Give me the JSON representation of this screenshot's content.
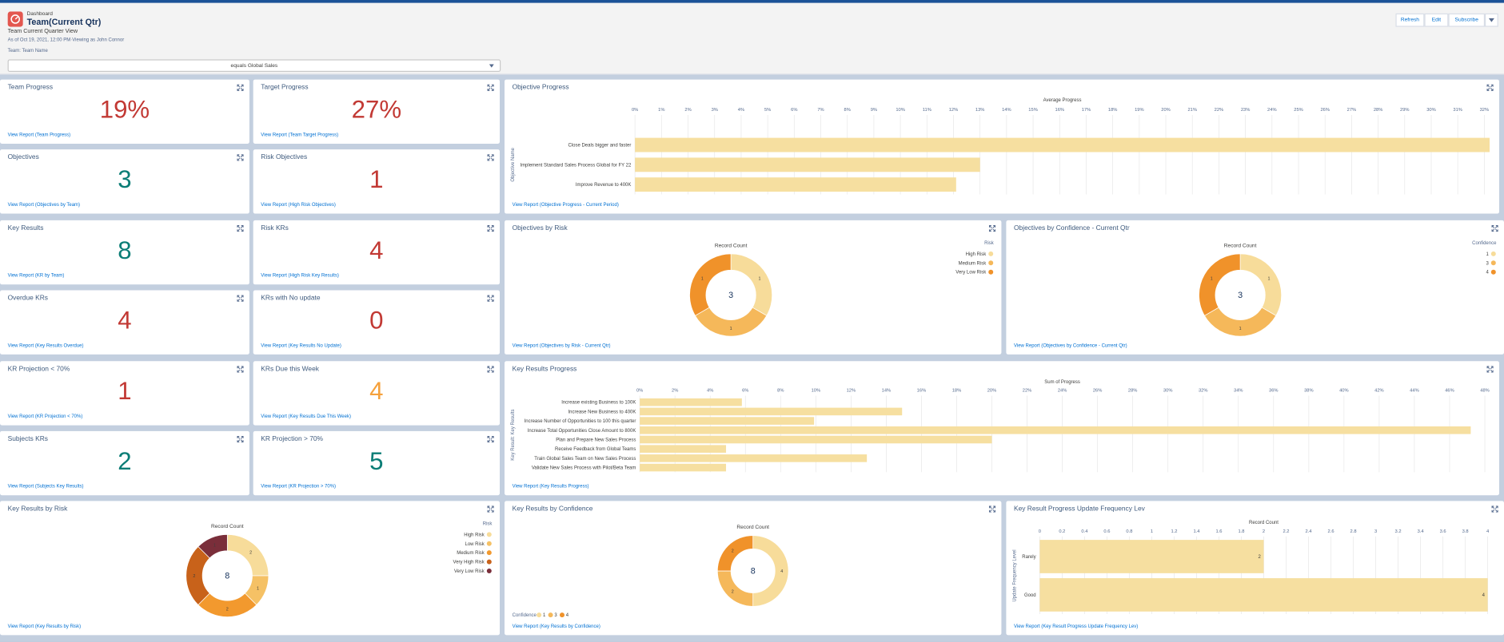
{
  "header": {
    "breadcrumb": "Dashboard",
    "title": "Team(Current Qtr)",
    "subtitle": "Team Current Quarter View",
    "meta": "As of Oct 19, 2021, 12:00 PM·Viewing as John Connor",
    "buttons": [
      "Refresh",
      "Edit",
      "Subscribe"
    ]
  },
  "filter": {
    "label": "Team: Team Name",
    "value": "equals Global Sales"
  },
  "metrics": [
    {
      "title": "Team Progress",
      "value": "19%",
      "color": "#c23934",
      "link": "View Report (Team Progress)"
    },
    {
      "title": "Target Progress",
      "value": "27%",
      "color": "#c23934",
      "link": "View Report (Team Target Progress)"
    },
    {
      "title": "Objectives",
      "value": "3",
      "color": "#0b7d76",
      "link": "View Report (Objectives by Team)"
    },
    {
      "title": "Risk Objectives",
      "value": "1",
      "color": "#c23934",
      "link": "View Report (High Risk Objectives)"
    },
    {
      "title": "Key Results",
      "value": "8",
      "color": "#0b7d76",
      "link": "View Report (KR by Team)"
    },
    {
      "title": "Risk KRs",
      "value": "4",
      "color": "#c23934",
      "link": "View Report (High Risk Key Results)"
    },
    {
      "title": "Overdue KRs",
      "value": "4",
      "color": "#c23934",
      "link": "View Report (Key Results Overdue)"
    },
    {
      "title": "KRs with No update",
      "value": "0",
      "color": "#c23934",
      "link": "View Report (Key Results No Update)"
    },
    {
      "title": "KR Projection < 70%",
      "value": "1",
      "color": "#c23934",
      "link": "View Report (KR Projection < 70%)"
    },
    {
      "title": "KRs Due this Week",
      "value": "4",
      "color": "#f5a13c",
      "link": "View Report (Key Results Due This Week)"
    },
    {
      "title": "Subjects KRs",
      "value": "2",
      "color": "#0b7d76",
      "link": "View Report (Subjects Key Results)"
    },
    {
      "title": "KR Projection > 70%",
      "value": "5",
      "color": "#0b7d76",
      "link": "View Report (KR Projection > 70%)"
    }
  ],
  "charts": [
    {
      "type": "hbar",
      "title": "Objective Progress",
      "x_label": "Average Progress",
      "y_label": "Objective Name",
      "categories": [
        "Close Deals bigger and faster",
        "Implement Standard Sales Process Global for FY 22",
        "Improve Revenue to 400K"
      ],
      "values": [
        32.2,
        13.0,
        12.1
      ],
      "color": "#f6dfa0",
      "xlim": [
        0,
        32.2
      ],
      "grid": true,
      "xticks": [
        {
          "value": 0,
          "label": "0%"
        },
        {
          "value": 1,
          "label": "1%"
        },
        {
          "value": 2,
          "label": "2%"
        },
        {
          "value": 3,
          "label": "3%"
        },
        {
          "value": 4,
          "label": "4%"
        },
        {
          "value": 5,
          "label": "5%"
        },
        {
          "value": 6,
          "label": "6%"
        },
        {
          "value": 7,
          "label": "7%"
        },
        {
          "value": 8,
          "label": "8%"
        },
        {
          "value": 9,
          "label": "9%"
        },
        {
          "value": 10,
          "label": "10%"
        },
        {
          "value": 11,
          "label": "11%"
        },
        {
          "value": 12,
          "label": "12%"
        },
        {
          "value": 13,
          "label": "13%"
        },
        {
          "value": 14,
          "label": "14%"
        },
        {
          "value": 15,
          "label": "15%"
        },
        {
          "value": 16,
          "label": "16%"
        },
        {
          "value": 17,
          "label": "17%"
        },
        {
          "value": 18,
          "label": "18%"
        },
        {
          "value": 19,
          "label": "19%"
        },
        {
          "value": 20,
          "label": "20%"
        },
        {
          "value": 21,
          "label": "21%"
        },
        {
          "value": 22,
          "label": "22%"
        },
        {
          "value": 23,
          "label": "23%"
        },
        {
          "value": 24,
          "label": "24%"
        },
        {
          "value": 25,
          "label": "25%"
        },
        {
          "value": 26,
          "label": "26%"
        },
        {
          "value": 27,
          "label": "27%"
        },
        {
          "value": 28,
          "label": "28%"
        },
        {
          "value": 29,
          "label": "29%"
        },
        {
          "value": 30,
          "label": "30%"
        },
        {
          "value": 31,
          "label": "31%"
        },
        {
          "value": 32,
          "label": "32%"
        }
      ],
      "link": "View Report (Objective Progress - Current Period)"
    },
    {
      "type": "donut",
      "title": "Objectives by Risk",
      "center_label": "Record Count",
      "total": 3,
      "legend_title": "Risk",
      "legend": "right",
      "categories": [
        "High Risk",
        "Medium Risk",
        "Very Low Risk"
      ],
      "values": [
        1,
        1,
        1
      ],
      "colors": [
        "#f7dc9a",
        "#f5b85a",
        "#f0922a"
      ],
      "link": "View Report (Objectives by Risk - Current Qtr)"
    },
    {
      "type": "donut",
      "title": "Objectives by Confidence - Current Qtr",
      "center_label": "Record Count",
      "total": 3,
      "legend_title": "Confidence",
      "legend": "right",
      "categories": [
        "1",
        "3",
        "4"
      ],
      "values": [
        1,
        1,
        1
      ],
      "colors": [
        "#f7dc9a",
        "#f5b85a",
        "#f0922a"
      ],
      "link": "View Report (Objectives by Confidence - Current Qtr)"
    },
    {
      "type": "hbar",
      "title": "Key Results Progress",
      "x_label": "Sum of Progress",
      "y_label": "Key Result: Key Results",
      "categories": [
        "Increase existing Business to 100K",
        "Increase New Business to 400K",
        "Increase Number of Opportunities to 100 this quarter",
        "Increase Total Opportunities Close Amount to 800K",
        "Plan and Prepare New Sales Process",
        "Receive Feedback from Global Teams",
        "Train Global Sales Team on New Sales Process",
        "Validate New Sales Process with Pilot/Beta Team"
      ],
      "values": [
        5.8,
        14.9,
        9.9,
        47.2,
        20.0,
        4.9,
        12.9,
        4.9
      ],
      "color": "#f6dfa0",
      "xlim": [
        0,
        48
      ],
      "grid": true,
      "xticks": [
        {
          "value": 0,
          "label": "0%"
        },
        {
          "value": 2,
          "label": "2%"
        },
        {
          "value": 4,
          "label": "4%"
        },
        {
          "value": 6,
          "label": "6%"
        },
        {
          "value": 8,
          "label": "8%"
        },
        {
          "value": 10,
          "label": "10%"
        },
        {
          "value": 12,
          "label": "12%"
        },
        {
          "value": 14,
          "label": "14%"
        },
        {
          "value": 16,
          "label": "16%"
        },
        {
          "value": 18,
          "label": "18%"
        },
        {
          "value": 20,
          "label": "20%"
        },
        {
          "value": 22,
          "label": "22%"
        },
        {
          "value": 24,
          "label": "24%"
        },
        {
          "value": 26,
          "label": "26%"
        },
        {
          "value": 28,
          "label": "28%"
        },
        {
          "value": 30,
          "label": "30%"
        },
        {
          "value": 32,
          "label": "32%"
        },
        {
          "value": 34,
          "label": "34%"
        },
        {
          "value": 36,
          "label": "36%"
        },
        {
          "value": 38,
          "label": "38%"
        },
        {
          "value": 40,
          "label": "40%"
        },
        {
          "value": 42,
          "label": "42%"
        },
        {
          "value": 44,
          "label": "44%"
        },
        {
          "value": 46,
          "label": "46%"
        },
        {
          "value": 48,
          "label": "48%"
        }
      ],
      "link": "View Report (Key Results Progress)"
    },
    {
      "type": "donut",
      "title": "Key Results by Risk",
      "center_label": "Record Count",
      "total": 8,
      "legend_title": "Risk",
      "legend": "right",
      "categories": [
        "High Risk",
        "Low Risk",
        "Medium Risk",
        "Very High Risk",
        "Very Low Risk"
      ],
      "values": [
        2,
        1,
        2,
        2,
        1
      ],
      "colors": [
        "#f7dc9a",
        "#f5c165",
        "#f2992e",
        "#c8621a",
        "#7a2e3a"
      ],
      "link": "View Report (Key Results by Risk)"
    },
    {
      "type": "donut",
      "title": "Key Results by Confidence",
      "center_label": "Record Count",
      "total": 8,
      "legend_title": "Confidence",
      "legend": "bottom",
      "categories": [
        "1",
        "3",
        "4"
      ],
      "values": [
        4,
        2,
        2
      ],
      "colors": [
        "#f7dc9a",
        "#f5b85a",
        "#f0922a"
      ],
      "link": "View Report (Key Results by Confidence)"
    },
    {
      "type": "hbar",
      "title": "Key Result Progress Update Frequency Lev",
      "x_label": "Record Count",
      "y_label": "Update Frequency Level",
      "categories": [
        "Rarely",
        "Good"
      ],
      "values": [
        2,
        4
      ],
      "color": "#f6dfa0",
      "xlim": [
        0,
        4
      ],
      "grid": true,
      "data_labels": true,
      "xticks": [
        0,
        0.2,
        0.4,
        0.6,
        0.8,
        1,
        1.2,
        1.4,
        1.6,
        1.8,
        2,
        2.2,
        2.4,
        2.6,
        2.8,
        3,
        3.2,
        3.4,
        3.6,
        3.8,
        4
      ],
      "link": "View Report (Key Result Progress Update Frequency Lev)"
    }
  ]
}
